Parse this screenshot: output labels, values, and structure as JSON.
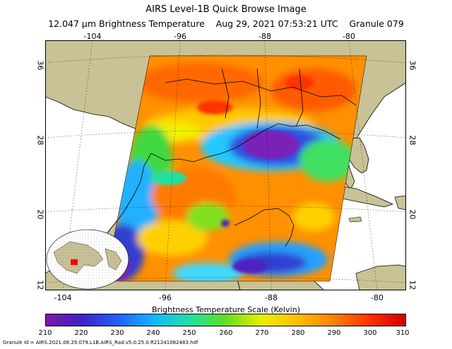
{
  "header": {
    "title": "AIRS Level-1B Quick Browse Image",
    "subtitle": "12.047 μm Brightness Temperature    Aug 29, 2021 07:53:21 UTC    Granule 079"
  },
  "map": {
    "lon_labels_top": [
      "-104",
      "-96",
      "-88",
      "-80"
    ],
    "lon_labels_bottom": [
      "-104",
      "-96",
      "-88",
      "-80"
    ],
    "lat_labels": [
      "36",
      "28",
      "20",
      "12"
    ],
    "colors": {
      "land": "#c8c296",
      "ocean": "#ffffff",
      "coast": "#000000"
    }
  },
  "scale": {
    "title": "Brightness Temperature Scale (Kelvin)",
    "ticks": [
      "210",
      "220",
      "230",
      "240",
      "250",
      "260",
      "270",
      "280",
      "290",
      "300",
      "310"
    ],
    "colors": [
      "#7a1aa8",
      "#4020c8",
      "#2060ff",
      "#10b8ff",
      "#20e0a0",
      "#60e020",
      "#e8f000",
      "#ffc000",
      "#ff8000",
      "#ff3000",
      "#d00000"
    ]
  },
  "footer": {
    "granule_id": "Granule Id = AIRS.2021.08.29.079.L1B.AIRS_Rad.v5.0.25.0.R21241082483.hdf"
  }
}
